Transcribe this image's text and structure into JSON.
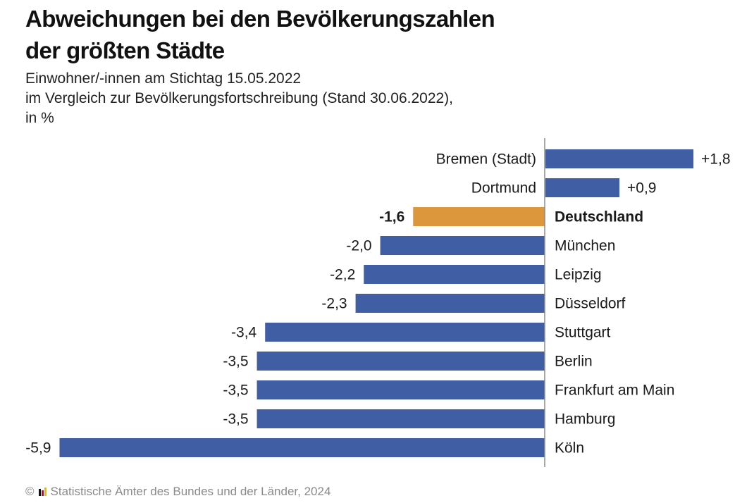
{
  "colors": {
    "bar": "#405ea3",
    "highlight": "#dc973c",
    "axis": "#8c8c8c",
    "text": "#1a1a1a",
    "footer": "#8a8a8a"
  },
  "footer": {
    "copyright_icon": "©",
    "logo_icon": "statistik-logo-icon",
    "text": "Statistische Ämter des Bundes und der Länder, 2024"
  },
  "chart_data": {
    "type": "bar",
    "orientation": "horizontal",
    "title": "Abweichungen bei den Bevölkerungszahlen der größten Städte",
    "title_lines": [
      "Abweichungen bei den Bevölkerungszahlen",
      "der größten Städte"
    ],
    "subtitle_lines": [
      "Einwohner/-innen am Stichtag 15.05.2022",
      "im Vergleich zur Bevölkerungsfortschreibung (Stand 30.06.2022),",
      "in %"
    ],
    "xlabel": "",
    "ylabel": "",
    "xlim": [
      -5.9,
      1.8
    ],
    "grid": false,
    "legend": "none",
    "categories": [
      "Bremen (Stadt)",
      "Dortmund",
      "Deutschland",
      "München",
      "Leipzig",
      "Düsseldorf",
      "Stuttgart",
      "Berlin",
      "Frankfurt am Main",
      "Hamburg",
      "Köln"
    ],
    "values": [
      1.8,
      0.9,
      -1.6,
      -2.0,
      -2.2,
      -2.3,
      -3.4,
      -3.5,
      -3.5,
      -3.5,
      -5.9
    ],
    "value_labels": [
      "+1,8",
      "+0,9",
      "-1,6",
      "-2,0",
      "-2,2",
      "-2,3",
      "-3,4",
      "-3,5",
      "-3,5",
      "-3,5",
      "-5,9"
    ],
    "highlight": [
      "Deutschland"
    ]
  }
}
